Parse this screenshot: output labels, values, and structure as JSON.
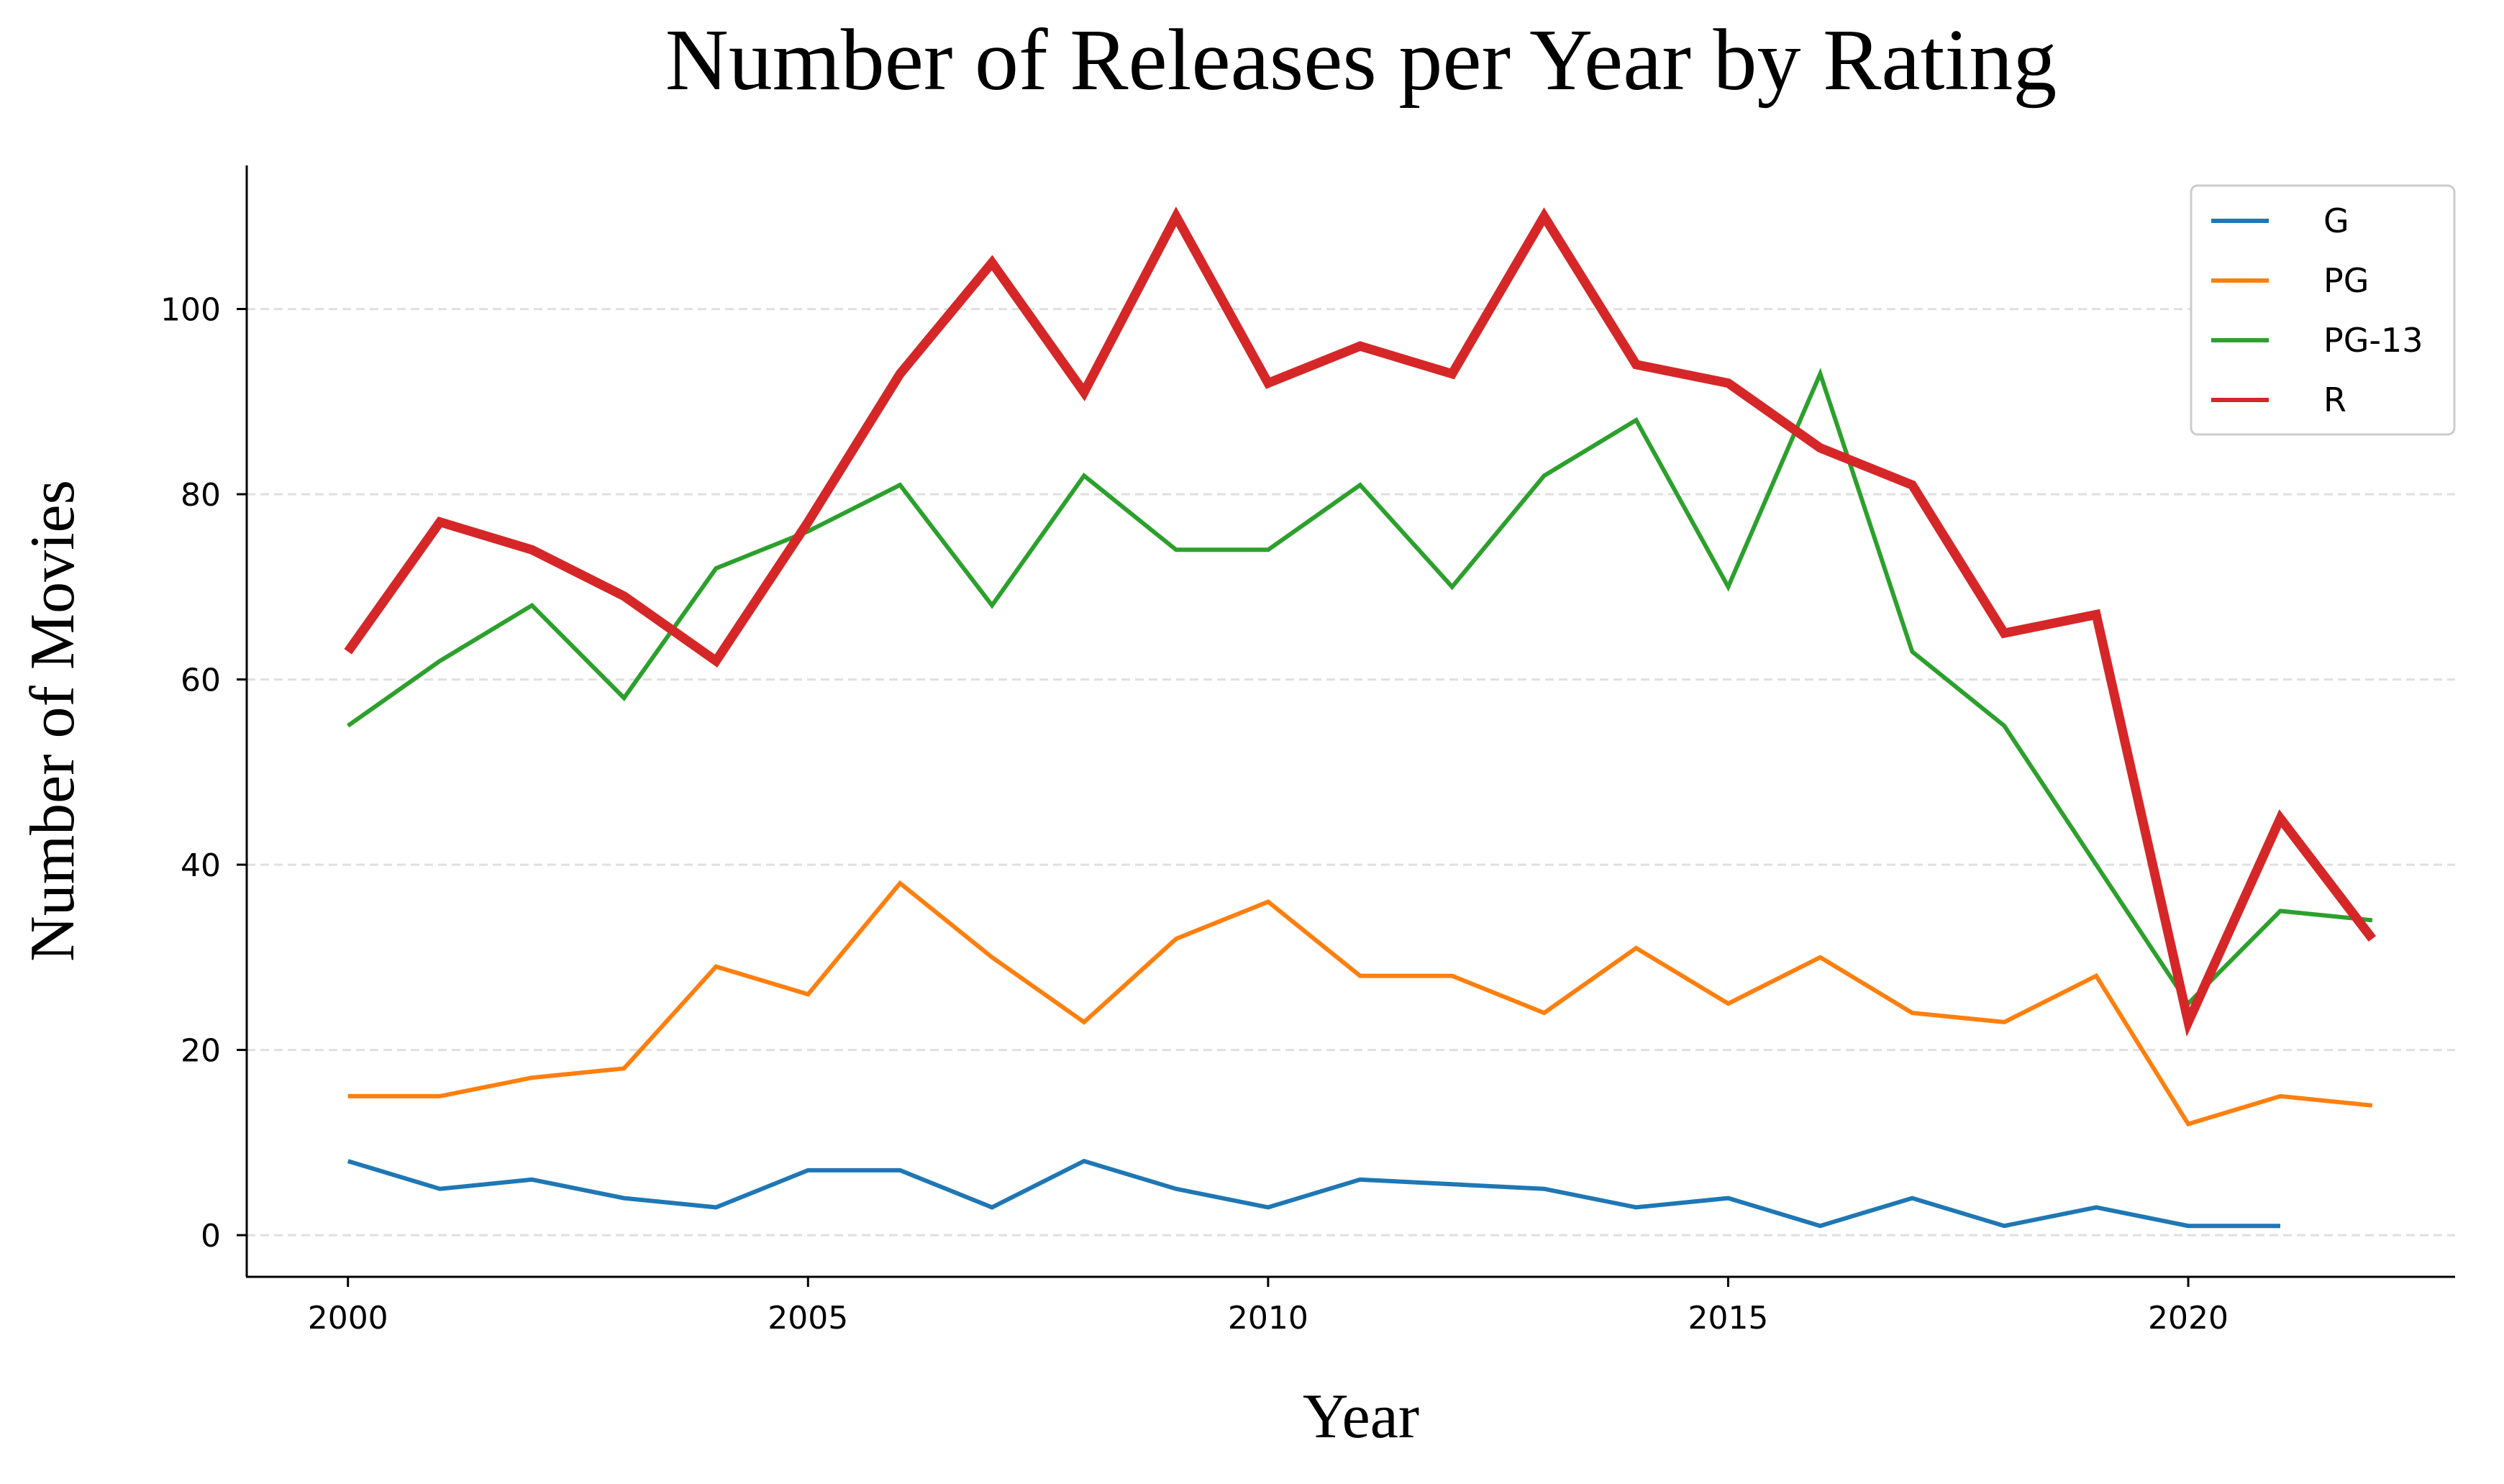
{
  "chart_data": {
    "type": "line",
    "title": "Number of Releases per Year by Rating",
    "xlabel": "Year",
    "ylabel": "Number of Movies",
    "x": [
      2000,
      2001,
      2002,
      2003,
      2004,
      2005,
      2006,
      2007,
      2008,
      2009,
      2010,
      2011,
      2012,
      2013,
      2014,
      2015,
      2016,
      2017,
      2018,
      2019,
      2020,
      2021,
      2022
    ],
    "xlim": [
      1998.9,
      2022.9
    ],
    "ylim": [
      -4.5,
      115.5
    ],
    "xticks": [
      2000,
      2005,
      2010,
      2015,
      2020
    ],
    "yticks": [
      0,
      20,
      40,
      60,
      80,
      100
    ],
    "grid": "horizontal dashed",
    "legend_position": "top-right",
    "series": [
      {
        "name": "G",
        "color": "#1f77b4",
        "values": [
          8,
          5,
          6,
          4,
          3,
          7,
          7,
          3,
          8,
          5,
          3,
          6,
          5.5,
          5,
          3,
          4,
          1,
          4,
          1,
          3,
          1,
          1,
          null
        ]
      },
      {
        "name": "PG",
        "color": "#ff7f0e",
        "values": [
          15,
          15,
          17,
          18,
          29,
          26,
          38,
          30,
          23,
          32,
          36,
          28,
          28,
          24,
          31,
          25,
          30,
          24,
          23,
          28,
          12,
          15,
          14
        ]
      },
      {
        "name": "PG-13",
        "color": "#2ca02c",
        "values": [
          55,
          62,
          68,
          58,
          72,
          76,
          81,
          68,
          82,
          74,
          74,
          81,
          70,
          82,
          88,
          70,
          93,
          63,
          55,
          40,
          25,
          35,
          34
        ]
      },
      {
        "name": "R",
        "color": "#d62728",
        "emphasis": true,
        "values": [
          63,
          77,
          74,
          69,
          62,
          77,
          93,
          105,
          91,
          110,
          92,
          96,
          93,
          110,
          94,
          92,
          85,
          81,
          65,
          67,
          23,
          45,
          32
        ]
      }
    ]
  }
}
